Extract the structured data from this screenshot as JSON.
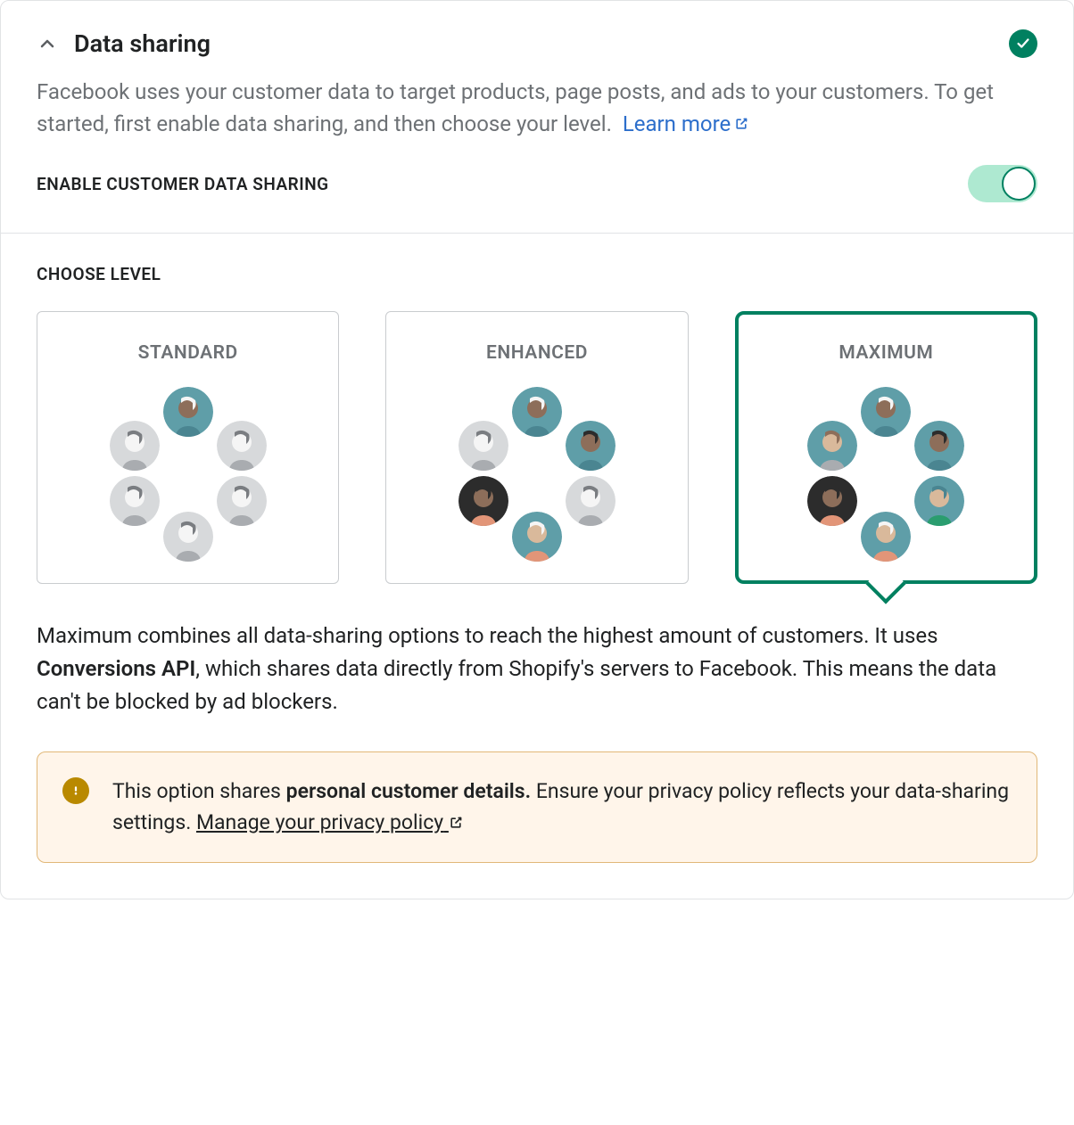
{
  "header": {
    "title": "Data sharing"
  },
  "description": {
    "text": "Facebook uses your customer data to target products, page posts, and ads to your customers. To get started, first enable data sharing, and then choose your level.",
    "link_text": "Learn more"
  },
  "toggle": {
    "label": "ENABLE CUSTOMER DATA SHARING",
    "enabled": true
  },
  "choose": {
    "label": "CHOOSE LEVEL",
    "selected_index": 2,
    "levels": [
      {
        "title": "STANDARD",
        "color_mode": "gray"
      },
      {
        "title": "ENHANCED",
        "color_mode": "half"
      },
      {
        "title": "MAXIMUM",
        "color_mode": "full"
      }
    ],
    "avatar_palette": {
      "teal": "#5f9ea8",
      "teal_dark": "#4a8591",
      "dark": "#2c2c2c",
      "orange": "#e29578",
      "green": "#2a9d6f",
      "white": "#f5f5f5",
      "skin1": "#8d6e5a",
      "skin2": "#d9b99b",
      "gray_bg": "#d7d9db",
      "gray_mid": "#a9acb0",
      "gray_dark": "#7a7d81"
    },
    "description_parts": {
      "pre": "Maximum combines all data-sharing options to reach the highest amount of customers. It uses ",
      "bold": "Conversions API",
      "post": ", which shares data directly from Shopify's servers to Facebook. This means the data can't be blocked by ad blockers."
    }
  },
  "warning": {
    "pre": "This option shares ",
    "bold": "personal customer details.",
    "mid": " Ensure your privacy policy reflects your data-sharing settings. ",
    "link": "Manage your privacy policy"
  },
  "colors": {
    "accent": "#008060",
    "link": "#2c6ecb",
    "warn_border": "#e1b878",
    "warn_bg": "#fff5ea",
    "warn_icon": "#b98900",
    "toggle_track": "#aee9d1"
  }
}
